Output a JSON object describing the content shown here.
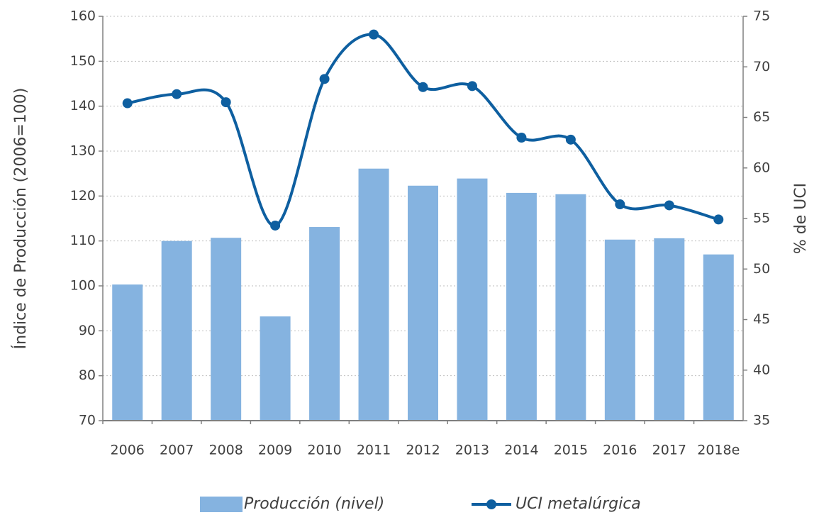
{
  "chart_data": {
    "type": "bar-line",
    "categories": [
      "2006",
      "2007",
      "2008",
      "2009",
      "2010",
      "2011",
      "2012",
      "2013",
      "2014",
      "2015",
      "2016",
      "2017",
      "2018e"
    ],
    "series": [
      {
        "name": "Producción (nivel)",
        "type": "bar",
        "color": "#85b3e0",
        "values": [
          100.3,
          110,
          110.7,
          93.2,
          113.1,
          126.1,
          122.3,
          123.9,
          120.7,
          120.4,
          110.3,
          110.6,
          107
        ]
      },
      {
        "name": "UCI metalúrgica",
        "type": "line",
        "axis": "y2",
        "color": "#0e5fa0",
        "values": [
          66.4,
          67.3,
          66.5,
          54.3,
          68.8,
          73.2,
          68.0,
          68.1,
          63.0,
          62.8,
          56.4,
          56.3,
          54.9
        ]
      }
    ],
    "ylabel": "Índice de Producción (2006=100)",
    "y2label": "% de UCI",
    "ylim": [
      70,
      160
    ],
    "yticks": [
      70,
      80,
      90,
      100,
      110,
      120,
      130,
      140,
      150,
      160
    ],
    "y2lim": [
      35,
      75
    ],
    "y2ticks": [
      35,
      40,
      45,
      50,
      55,
      60,
      65,
      70,
      75
    ],
    "grid": true,
    "legend": "bottom"
  }
}
